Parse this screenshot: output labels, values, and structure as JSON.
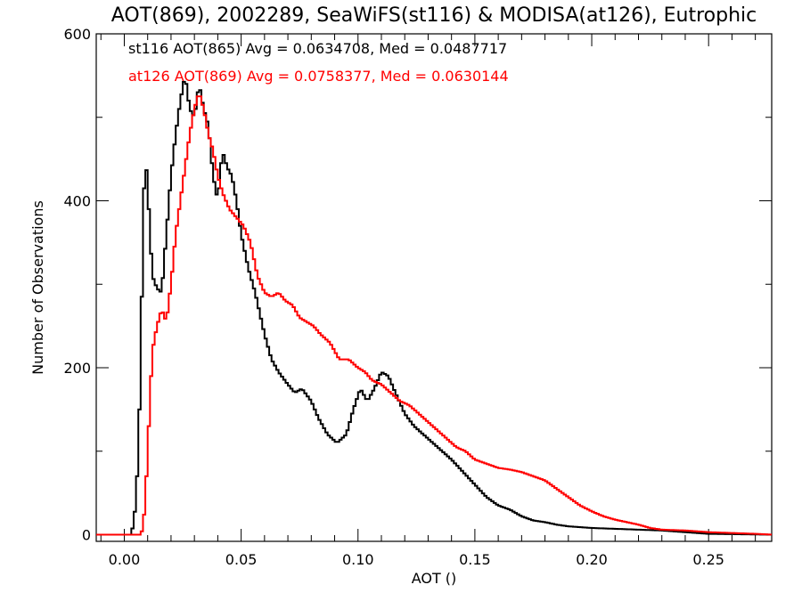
{
  "chart_data": {
    "type": "histogram",
    "title": "AOT(869), 2002289, SeaWiFS(st116) & MODISA(at126), Eutrophic",
    "xlabel": "AOT ()",
    "ylabel": "Number of Observations",
    "xlim": [
      -0.012,
      0.277
    ],
    "ylim": [
      -8,
      600
    ],
    "xticks": [
      0.0,
      0.05,
      0.1,
      0.15,
      0.2,
      0.25
    ],
    "xtick_labels": [
      "0.00",
      "0.05",
      "0.10",
      "0.15",
      "0.20",
      "0.25"
    ],
    "yticks": [
      0,
      200,
      400,
      600
    ],
    "ytick_labels": [
      "0",
      "200",
      "400",
      "600"
    ],
    "grid": false,
    "legend_placement": "top-left",
    "series": [
      {
        "name": "st116 AOT(865) Avg = 0.0634708, Med = 0.0487717",
        "color": "#000000",
        "points": [
          [
            -0.012,
            0
          ],
          [
            0.0,
            0
          ],
          [
            0.003,
            0
          ],
          [
            0.004,
            15
          ],
          [
            0.005,
            40
          ],
          [
            0.006,
            100
          ],
          [
            0.007,
            200
          ],
          [
            0.008,
            370
          ],
          [
            0.009,
            460
          ],
          [
            0.0105,
            390
          ],
          [
            0.012,
            310
          ],
          [
            0.014,
            295
          ],
          [
            0.016,
            290
          ],
          [
            0.018,
            360
          ],
          [
            0.02,
            430
          ],
          [
            0.022,
            480
          ],
          [
            0.024,
            520
          ],
          [
            0.026,
            550
          ],
          [
            0.028,
            510
          ],
          [
            0.03,
            500
          ],
          [
            0.032,
            540
          ],
          [
            0.034,
            510
          ],
          [
            0.036,
            490
          ],
          [
            0.038,
            430
          ],
          [
            0.04,
            400
          ],
          [
            0.042,
            460
          ],
          [
            0.044,
            440
          ],
          [
            0.046,
            430
          ],
          [
            0.048,
            400
          ],
          [
            0.05,
            360
          ],
          [
            0.053,
            320
          ],
          [
            0.056,
            290
          ],
          [
            0.06,
            240
          ],
          [
            0.063,
            210
          ],
          [
            0.066,
            195
          ],
          [
            0.07,
            180
          ],
          [
            0.073,
            170
          ],
          [
            0.076,
            175
          ],
          [
            0.08,
            160
          ],
          [
            0.083,
            140
          ],
          [
            0.087,
            120
          ],
          [
            0.091,
            110
          ],
          [
            0.095,
            120
          ],
          [
            0.098,
            150
          ],
          [
            0.101,
            175
          ],
          [
            0.104,
            160
          ],
          [
            0.107,
            175
          ],
          [
            0.11,
            195
          ],
          [
            0.113,
            190
          ],
          [
            0.116,
            170
          ],
          [
            0.12,
            145
          ],
          [
            0.124,
            130
          ],
          [
            0.128,
            120
          ],
          [
            0.132,
            110
          ],
          [
            0.136,
            100
          ],
          [
            0.14,
            90
          ],
          [
            0.145,
            75
          ],
          [
            0.15,
            60
          ],
          [
            0.155,
            45
          ],
          [
            0.16,
            35
          ],
          [
            0.165,
            30
          ],
          [
            0.17,
            22
          ],
          [
            0.175,
            17
          ],
          [
            0.18,
            15
          ],
          [
            0.185,
            12
          ],
          [
            0.19,
            10
          ],
          [
            0.2,
            8
          ],
          [
            0.21,
            7
          ],
          [
            0.22,
            6
          ],
          [
            0.23,
            5
          ],
          [
            0.24,
            3
          ],
          [
            0.25,
            1
          ],
          [
            0.277,
            0
          ]
        ]
      },
      {
        "name": "at126 AOT(869) Avg = 0.0758377, Med = 0.0630144",
        "color": "#ff0000",
        "points": [
          [
            -0.012,
            0
          ],
          [
            0.0,
            0
          ],
          [
            0.007,
            0
          ],
          [
            0.008,
            8
          ],
          [
            0.009,
            40
          ],
          [
            0.01,
            100
          ],
          [
            0.011,
            160
          ],
          [
            0.012,
            220
          ],
          [
            0.014,
            250
          ],
          [
            0.016,
            270
          ],
          [
            0.018,
            255
          ],
          [
            0.02,
            300
          ],
          [
            0.022,
            360
          ],
          [
            0.024,
            400
          ],
          [
            0.026,
            440
          ],
          [
            0.028,
            480
          ],
          [
            0.03,
            510
          ],
          [
            0.032,
            530
          ],
          [
            0.034,
            510
          ],
          [
            0.036,
            480
          ],
          [
            0.038,
            460
          ],
          [
            0.04,
            430
          ],
          [
            0.042,
            410
          ],
          [
            0.045,
            390
          ],
          [
            0.048,
            380
          ],
          [
            0.051,
            370
          ],
          [
            0.054,
            350
          ],
          [
            0.057,
            310
          ],
          [
            0.06,
            290
          ],
          [
            0.063,
            285
          ],
          [
            0.066,
            290
          ],
          [
            0.069,
            280
          ],
          [
            0.072,
            275
          ],
          [
            0.075,
            260
          ],
          [
            0.078,
            255
          ],
          [
            0.081,
            250
          ],
          [
            0.084,
            240
          ],
          [
            0.088,
            230
          ],
          [
            0.092,
            210
          ],
          [
            0.096,
            210
          ],
          [
            0.1,
            200
          ],
          [
            0.103,
            195
          ],
          [
            0.106,
            185
          ],
          [
            0.11,
            180
          ],
          [
            0.114,
            170
          ],
          [
            0.118,
            160
          ],
          [
            0.122,
            155
          ],
          [
            0.126,
            145
          ],
          [
            0.13,
            135
          ],
          [
            0.134,
            125
          ],
          [
            0.138,
            115
          ],
          [
            0.142,
            105
          ],
          [
            0.146,
            100
          ],
          [
            0.15,
            90
          ],
          [
            0.155,
            85
          ],
          [
            0.16,
            80
          ],
          [
            0.165,
            78
          ],
          [
            0.17,
            75
          ],
          [
            0.175,
            70
          ],
          [
            0.18,
            65
          ],
          [
            0.185,
            55
          ],
          [
            0.19,
            45
          ],
          [
            0.195,
            35
          ],
          [
            0.2,
            28
          ],
          [
            0.205,
            22
          ],
          [
            0.21,
            18
          ],
          [
            0.215,
            15
          ],
          [
            0.22,
            12
          ],
          [
            0.225,
            8
          ],
          [
            0.23,
            6
          ],
          [
            0.24,
            5
          ],
          [
            0.25,
            3
          ],
          [
            0.26,
            2
          ],
          [
            0.27,
            1
          ],
          [
            0.277,
            0
          ]
        ]
      }
    ]
  }
}
